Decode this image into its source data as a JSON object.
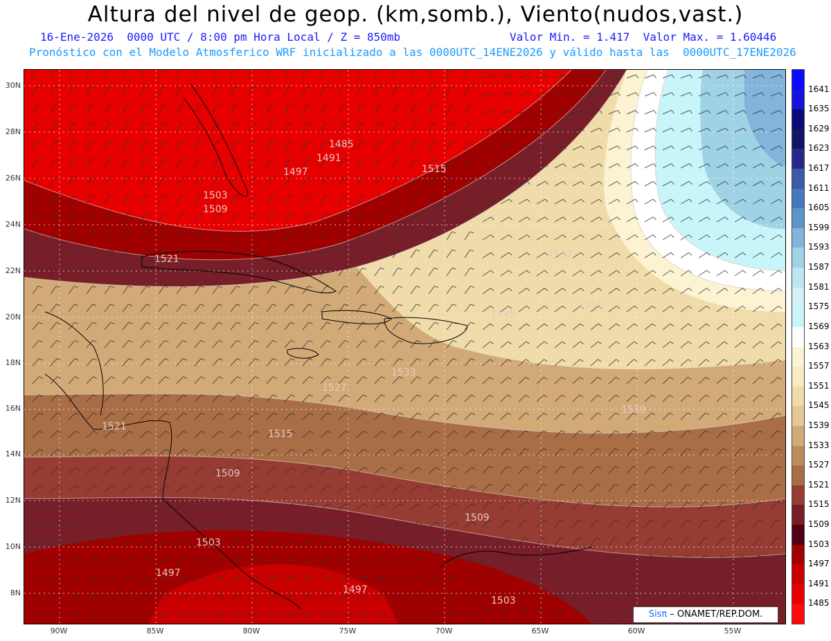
{
  "header": {
    "title": "Altura del nivel de geop. (km,somb.), Viento(nudos,vast.)",
    "subtitle_left": "16-Ene-2026  0000 UTC / 8:00 pm Hora Local / Z = 850mb",
    "subtitle_right": "Valor Min. = 1.417  Valor Max. = 1.60446",
    "model_line": "Pronóstico con el Modelo Atmosferico WRF inicializado a las 0000UTC_14ENE2026 y válido hasta las  0000UTC_17ENE2026"
  },
  "map": {
    "lat_labels": [
      "30N",
      "28N",
      "26N",
      "24N",
      "22N",
      "20N",
      "18N",
      "16N",
      "14N",
      "12N",
      "10N",
      "8N"
    ],
    "lon_labels": [
      "90W",
      "85W",
      "80W",
      "75W",
      "70W",
      "65W",
      "60W",
      "55W"
    ],
    "contour_labels": [
      "1485",
      "1491",
      "1497",
      "1503",
      "1509",
      "1515",
      "1521",
      "1527",
      "1533",
      "1539",
      "1545",
      "1551",
      "1557",
      "1515",
      "1521",
      "1509",
      "1503",
      "1497",
      "1509",
      "1497",
      "1503"
    ],
    "credit_brand": "Sisπ",
    "credit_text": " – ONAMET/REP.DOM."
  },
  "colorbar": {
    "levels": [
      "1641",
      "1635",
      "1629",
      "1623",
      "1617",
      "1611",
      "1605",
      "1599",
      "1593",
      "1587",
      "1581",
      "1575",
      "1569",
      "1563",
      "1557",
      "1551",
      "1545",
      "1539",
      "1533",
      "1527",
      "1521",
      "1515",
      "1509",
      "1503",
      "1497",
      "1491",
      "1485"
    ],
    "colors": [
      "#0a0aff",
      "#1414dc",
      "#0a0a78",
      "#141464",
      "#28288c",
      "#3c5aa8",
      "#4678be",
      "#5a96c8",
      "#82b4dc",
      "#a0d2e6",
      "#bee6f0",
      "#d2f0f5",
      "#c8f5fa",
      "#ffffff",
      "#fcf3d2",
      "#f7ebc3",
      "#f0dcaa",
      "#e6c896",
      "#d2aa78",
      "#be8c5a",
      "#aa6e46",
      "#963c32",
      "#781e28",
      "#500014",
      "#a00000",
      "#c80000",
      "#e60000",
      "#ff0a0a"
    ]
  },
  "colors": {
    "title": "#000000",
    "subtitle": "#1a1aff",
    "model_line": "#1a9aff"
  }
}
